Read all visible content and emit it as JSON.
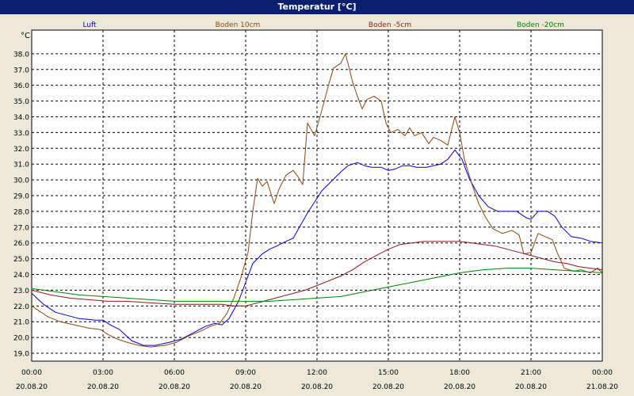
{
  "window": {
    "title": "Temperatur [°C]"
  },
  "chart_data": {
    "type": "line",
    "title": "Temperatur [°C]",
    "ylabel": "°C",
    "ylim": [
      18.5,
      39.5
    ],
    "yticks": [
      19.0,
      20.0,
      21.0,
      22.0,
      23.0,
      24.0,
      25.0,
      26.0,
      27.0,
      28.0,
      29.0,
      30.0,
      31.0,
      32.0,
      33.0,
      34.0,
      35.0,
      36.0,
      37.0,
      38.0
    ],
    "xlim": [
      0,
      24
    ],
    "xticks": [
      {
        "t": "00:00",
        "d": "20.08.20"
      },
      {
        "t": "03:00",
        "d": "20.08.20"
      },
      {
        "t": "06:00",
        "d": "20.08.20"
      },
      {
        "t": "09:00",
        "d": "20.08.20"
      },
      {
        "t": "12:00",
        "d": "20.08.20"
      },
      {
        "t": "15:00",
        "d": "20.08.20"
      },
      {
        "t": "18:00",
        "d": "20.08.20"
      },
      {
        "t": "21:00",
        "d": "20.08.20"
      },
      {
        "t": "00:00",
        "d": "21.08.20"
      }
    ],
    "grid": true,
    "legend_position": "top",
    "series": [
      {
        "name": "Luft",
        "color": "#0000cc",
        "points": [
          [
            0,
            22.8
          ],
          [
            0.5,
            22.1
          ],
          [
            1,
            21.6
          ],
          [
            2,
            21.2
          ],
          [
            2.7,
            21.1
          ],
          [
            3,
            21.1
          ],
          [
            3.3,
            20.8
          ],
          [
            3.7,
            20.5
          ],
          [
            4.2,
            19.8
          ],
          [
            4.7,
            19.5
          ],
          [
            5.2,
            19.5
          ],
          [
            5.8,
            19.7
          ],
          [
            6.3,
            19.9
          ],
          [
            6.8,
            20.3
          ],
          [
            7.3,
            20.7
          ],
          [
            7.7,
            20.9
          ],
          [
            8,
            20.8
          ],
          [
            8.3,
            21.2
          ],
          [
            8.7,
            22.3
          ],
          [
            9,
            23.5
          ],
          [
            9.3,
            24.7
          ],
          [
            9.7,
            25.3
          ],
          [
            10,
            25.6
          ],
          [
            10.3,
            25.8
          ],
          [
            10.7,
            26.1
          ],
          [
            11,
            26.3
          ],
          [
            11.3,
            27.1
          ],
          [
            11.6,
            27.9
          ],
          [
            11.9,
            28.6
          ],
          [
            12.2,
            29.3
          ],
          [
            12.6,
            29.9
          ],
          [
            13,
            30.5
          ],
          [
            13.3,
            30.9
          ],
          [
            13.7,
            31.1
          ],
          [
            14,
            30.9
          ],
          [
            14.3,
            30.8
          ],
          [
            14.7,
            30.8
          ],
          [
            15,
            30.6
          ],
          [
            15.3,
            30.7
          ],
          [
            15.6,
            30.9
          ],
          [
            15.9,
            30.9
          ],
          [
            16.2,
            30.8
          ],
          [
            16.6,
            30.8
          ],
          [
            16.9,
            30.9
          ],
          [
            17.2,
            31.0
          ],
          [
            17.5,
            31.3
          ],
          [
            17.8,
            31.9
          ],
          [
            18.1,
            31.3
          ],
          [
            18.4,
            30.1
          ],
          [
            18.8,
            29.0
          ],
          [
            19.2,
            28.3
          ],
          [
            19.6,
            28.0
          ],
          [
            20,
            28.0
          ],
          [
            20.4,
            28.0
          ],
          [
            20.8,
            27.6
          ],
          [
            21,
            27.5
          ],
          [
            21.3,
            28.0
          ],
          [
            21.7,
            28.0
          ],
          [
            22,
            27.7
          ],
          [
            22.3,
            27.0
          ],
          [
            22.7,
            26.4
          ],
          [
            23.1,
            26.3
          ],
          [
            23.5,
            26.1
          ],
          [
            24,
            26.0
          ]
        ]
      },
      {
        "name": "Boden 10cm",
        "color": "#8b4513",
        "points": [
          [
            0,
            22.0
          ],
          [
            0.3,
            21.7
          ],
          [
            0.7,
            21.3
          ],
          [
            1.2,
            21.0
          ],
          [
            1.8,
            20.8
          ],
          [
            2.4,
            20.6
          ],
          [
            2.9,
            20.5
          ],
          [
            3.2,
            20.2
          ],
          [
            3.6,
            19.9
          ],
          [
            4,
            19.7
          ],
          [
            4.5,
            19.5
          ],
          [
            5,
            19.4
          ],
          [
            5.6,
            19.5
          ],
          [
            6.1,
            19.7
          ],
          [
            6.6,
            20.1
          ],
          [
            7.1,
            20.4
          ],
          [
            7.5,
            20.7
          ],
          [
            7.9,
            20.9
          ],
          [
            8.2,
            21.5
          ],
          [
            8.5,
            22.5
          ],
          [
            8.8,
            23.8
          ],
          [
            9.1,
            25.4
          ],
          [
            9.3,
            28.0
          ],
          [
            9.5,
            30.1
          ],
          [
            9.7,
            29.6
          ],
          [
            9.9,
            29.9
          ],
          [
            10.2,
            28.5
          ],
          [
            10.4,
            29.4
          ],
          [
            10.7,
            30.3
          ],
          [
            11,
            30.6
          ],
          [
            11.2,
            30.2
          ],
          [
            11.4,
            29.7
          ],
          [
            11.6,
            33.6
          ],
          [
            11.9,
            32.8
          ],
          [
            12.2,
            34.4
          ],
          [
            12.5,
            36.1
          ],
          [
            12.7,
            37.1
          ],
          [
            13,
            37.4
          ],
          [
            13.2,
            38.0
          ],
          [
            13.5,
            36.2
          ],
          [
            13.7,
            35.3
          ],
          [
            13.9,
            34.5
          ],
          [
            14.1,
            35.1
          ],
          [
            14.4,
            35.3
          ],
          [
            14.7,
            35.0
          ],
          [
            14.9,
            33.6
          ],
          [
            15.1,
            33.0
          ],
          [
            15.4,
            33.2
          ],
          [
            15.7,
            32.8
          ],
          [
            15.9,
            33.3
          ],
          [
            16.1,
            32.8
          ],
          [
            16.4,
            33.0
          ],
          [
            16.7,
            32.3
          ],
          [
            16.9,
            32.7
          ],
          [
            17.2,
            32.5
          ],
          [
            17.5,
            32.2
          ],
          [
            17.8,
            34.0
          ],
          [
            18,
            33.0
          ],
          [
            18.2,
            31.3
          ],
          [
            18.5,
            29.8
          ],
          [
            18.8,
            28.5
          ],
          [
            19.1,
            27.6
          ],
          [
            19.4,
            26.9
          ],
          [
            19.8,
            26.6
          ],
          [
            20.2,
            26.8
          ],
          [
            20.5,
            26.5
          ],
          [
            20.7,
            25.3
          ],
          [
            21,
            25.4
          ],
          [
            21.3,
            26.6
          ],
          [
            21.6,
            26.4
          ],
          [
            21.9,
            26.2
          ],
          [
            22.1,
            25.4
          ],
          [
            22.4,
            24.4
          ],
          [
            22.8,
            24.2
          ],
          [
            23.1,
            24.3
          ],
          [
            23.5,
            24.1
          ],
          [
            23.8,
            24.4
          ],
          [
            24,
            24.1
          ]
        ]
      },
      {
        "name": "Boden -5cm",
        "color": "#8b1a1a",
        "points": [
          [
            0,
            23.0
          ],
          [
            0.8,
            22.7
          ],
          [
            1.6,
            22.5
          ],
          [
            2.4,
            22.4
          ],
          [
            3.2,
            22.3
          ],
          [
            4,
            22.3
          ],
          [
            5,
            22.2
          ],
          [
            6,
            22.1
          ],
          [
            7,
            22.1
          ],
          [
            8,
            22.1
          ],
          [
            8.5,
            22.0
          ],
          [
            9,
            22.0
          ],
          [
            9.5,
            22.2
          ],
          [
            10,
            22.4
          ],
          [
            10.5,
            22.6
          ],
          [
            11,
            22.8
          ],
          [
            11.5,
            23.0
          ],
          [
            12,
            23.3
          ],
          [
            12.5,
            23.6
          ],
          [
            13,
            23.9
          ],
          [
            13.5,
            24.3
          ],
          [
            14,
            24.8
          ],
          [
            14.5,
            25.2
          ],
          [
            15,
            25.6
          ],
          [
            15.5,
            25.9
          ],
          [
            16,
            26.0
          ],
          [
            16.5,
            26.1
          ],
          [
            17,
            26.1
          ],
          [
            17.5,
            26.1
          ],
          [
            18,
            26.1
          ],
          [
            18.5,
            26.0
          ],
          [
            19,
            25.9
          ],
          [
            19.5,
            25.8
          ],
          [
            20,
            25.6
          ],
          [
            20.5,
            25.4
          ],
          [
            21,
            25.2
          ],
          [
            21.5,
            25.0
          ],
          [
            22,
            24.8
          ],
          [
            22.5,
            24.7
          ],
          [
            23,
            24.5
          ],
          [
            23.5,
            24.4
          ],
          [
            24,
            24.3
          ]
        ]
      },
      {
        "name": "Boden -20cm",
        "color": "#008000",
        "points": [
          [
            0,
            23.1
          ],
          [
            1,
            22.9
          ],
          [
            2,
            22.7
          ],
          [
            3,
            22.6
          ],
          [
            4,
            22.5
          ],
          [
            5,
            22.4
          ],
          [
            6,
            22.3
          ],
          [
            7,
            22.3
          ],
          [
            8,
            22.3
          ],
          [
            9,
            22.3
          ],
          [
            10,
            22.3
          ],
          [
            11,
            22.4
          ],
          [
            12,
            22.5
          ],
          [
            13,
            22.6
          ],
          [
            14,
            22.9
          ],
          [
            15,
            23.2
          ],
          [
            16,
            23.5
          ],
          [
            17,
            23.8
          ],
          [
            18,
            24.1
          ],
          [
            19,
            24.3
          ],
          [
            20,
            24.4
          ],
          [
            21,
            24.4
          ],
          [
            22,
            24.3
          ],
          [
            23,
            24.2
          ],
          [
            24,
            24.1
          ]
        ]
      }
    ]
  }
}
